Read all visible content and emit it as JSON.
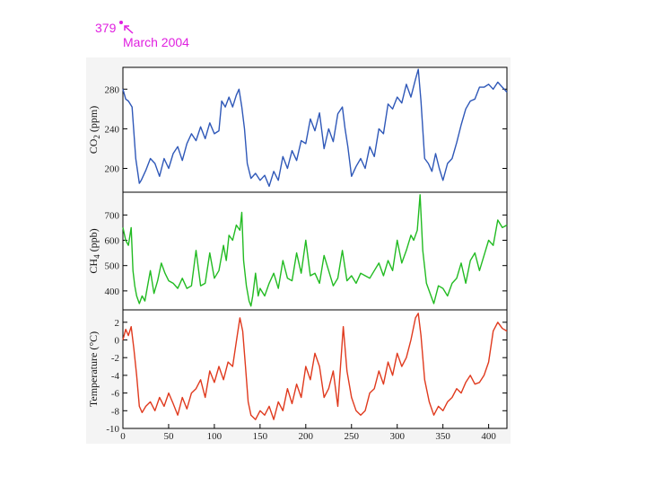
{
  "annotation": {
    "value": "379",
    "date": "March 2004",
    "color": "#e020e0"
  },
  "chart_data": [
    {
      "type": "line",
      "id": "co2",
      "ylabel": "CO2 (ppm)",
      "ylabel_main": "CO",
      "ylabel_sub": "2",
      "ylabel_rest": " (ppm)",
      "ylim": [
        176,
        302
      ],
      "yticks": [
        200,
        240,
        280
      ],
      "ytick_labels": [
        "200",
        "240",
        "280"
      ],
      "xlim": [
        0,
        420
      ],
      "color": "#2f58b8",
      "x": [
        0,
        3,
        6,
        10,
        14,
        18,
        20,
        25,
        30,
        35,
        40,
        45,
        50,
        55,
        60,
        65,
        70,
        75,
        80,
        85,
        90,
        95,
        100,
        105,
        108,
        112,
        116,
        120,
        124,
        127,
        130,
        133,
        136,
        140,
        145,
        150,
        155,
        160,
        165,
        170,
        175,
        180,
        185,
        190,
        195,
        200,
        205,
        210,
        215,
        220,
        225,
        230,
        235,
        240,
        243,
        246,
        250,
        255,
        260,
        265,
        270,
        275,
        280,
        285,
        290,
        295,
        300,
        305,
        310,
        315,
        320,
        323,
        326,
        330,
        334,
        338,
        342,
        346,
        350,
        355,
        360,
        365,
        370,
        375,
        380,
        385,
        390,
        395,
        400,
        405,
        410,
        415,
        420
      ],
      "values": [
        280,
        270,
        268,
        262,
        210,
        185,
        188,
        198,
        210,
        205,
        192,
        210,
        200,
        215,
        222,
        208,
        225,
        235,
        228,
        242,
        230,
        246,
        235,
        238,
        268,
        262,
        272,
        262,
        274,
        280,
        262,
        240,
        205,
        190,
        195,
        188,
        193,
        182,
        197,
        188,
        212,
        200,
        218,
        208,
        228,
        225,
        250,
        238,
        256,
        220,
        240,
        227,
        255,
        262,
        240,
        222,
        192,
        202,
        210,
        200,
        222,
        212,
        240,
        235,
        265,
        260,
        272,
        266,
        285,
        272,
        290,
        300,
        268,
        210,
        205,
        197,
        215,
        200,
        188,
        205,
        210,
        226,
        244,
        260,
        268,
        270,
        282,
        282,
        285,
        280,
        287,
        282,
        277
      ]
    },
    {
      "type": "line",
      "id": "ch4",
      "ylabel": "CH4 (ppb)",
      "ylabel_main": "CH",
      "ylabel_sub": "4",
      "ylabel_rest": " (ppb)",
      "ylim": [
        325,
        790
      ],
      "yticks": [
        400,
        500,
        600,
        700
      ],
      "ytick_labels": [
        "400",
        "500",
        "600",
        "700"
      ],
      "xlim": [
        0,
        420
      ],
      "color": "#22bb22",
      "x": [
        0,
        3,
        6,
        9,
        11,
        13,
        15,
        18,
        21,
        24,
        27,
        30,
        34,
        38,
        42,
        46,
        50,
        55,
        60,
        65,
        70,
        75,
        80,
        85,
        90,
        95,
        100,
        105,
        110,
        113,
        116,
        120,
        124,
        128,
        130,
        132,
        135,
        138,
        140,
        142,
        145,
        148,
        150,
        155,
        160,
        165,
        170,
        175,
        180,
        185,
        190,
        195,
        200,
        205,
        210,
        215,
        220,
        225,
        230,
        235,
        240,
        245,
        250,
        255,
        260,
        265,
        270,
        275,
        280,
        285,
        290,
        295,
        300,
        305,
        310,
        315,
        318,
        322,
        325,
        328,
        332,
        336,
        340,
        345,
        350,
        355,
        360,
        365,
        370,
        375,
        380,
        385,
        390,
        395,
        400,
        405,
        410,
        415,
        420
      ],
      "values": [
        650,
        600,
        580,
        650,
        480,
        420,
        380,
        350,
        380,
        360,
        420,
        480,
        390,
        440,
        510,
        470,
        440,
        430,
        410,
        450,
        410,
        420,
        560,
        420,
        430,
        550,
        450,
        480,
        580,
        520,
        620,
        600,
        660,
        640,
        710,
        520,
        420,
        360,
        340,
        380,
        470,
        380,
        410,
        380,
        430,
        470,
        410,
        520,
        450,
        440,
        550,
        470,
        600,
        460,
        470,
        430,
        540,
        480,
        420,
        450,
        560,
        440,
        460,
        430,
        470,
        460,
        450,
        480,
        510,
        460,
        520,
        480,
        600,
        510,
        560,
        620,
        600,
        640,
        780,
        560,
        430,
        390,
        350,
        420,
        410,
        380,
        430,
        450,
        510,
        430,
        520,
        550,
        480,
        540,
        600,
        580,
        680,
        650,
        660
      ]
    },
    {
      "type": "line",
      "id": "temperature",
      "ylabel": "Temperature (°C)",
      "ylim": [
        -10,
        3.4
      ],
      "yticks": [
        -10,
        -8,
        -6,
        -4,
        -2,
        0,
        2
      ],
      "ytick_labels": [
        "-10",
        "-8",
        "-6",
        "-4",
        "-2",
        "0",
        "2"
      ],
      "xlim": [
        0,
        420
      ],
      "xticks": [
        0,
        50,
        100,
        150,
        200,
        250,
        300,
        350,
        400
      ],
      "xtick_labels": [
        "0",
        "50",
        "100",
        "150",
        "200",
        "250",
        "300",
        "350",
        "400"
      ],
      "color": "#e03a1e",
      "x": [
        0,
        3,
        6,
        9,
        12,
        15,
        18,
        21,
        25,
        30,
        35,
        40,
        45,
        50,
        55,
        60,
        65,
        70,
        75,
        80,
        85,
        90,
        95,
        100,
        105,
        110,
        115,
        120,
        125,
        128,
        131,
        134,
        137,
        140,
        145,
        150,
        155,
        160,
        165,
        170,
        175,
        180,
        185,
        190,
        195,
        200,
        205,
        210,
        215,
        220,
        225,
        230,
        235,
        238,
        241,
        245,
        250,
        255,
        260,
        265,
        270,
        275,
        280,
        285,
        290,
        295,
        300,
        305,
        310,
        315,
        320,
        323,
        326,
        330,
        335,
        340,
        345,
        350,
        355,
        360,
        365,
        370,
        375,
        380,
        385,
        390,
        395,
        400,
        405,
        410,
        415,
        420
      ],
      "values": [
        0,
        1.2,
        0.5,
        1.5,
        -1,
        -4,
        -7.5,
        -8.2,
        -7.5,
        -7,
        -8,
        -6.5,
        -7.5,
        -6,
        -7.2,
        -8.5,
        -6.5,
        -7.8,
        -6,
        -5.5,
        -4.5,
        -6.5,
        -3.5,
        -4.8,
        -3,
        -4.5,
        -2.5,
        -3,
        0.5,
        2.5,
        1,
        -3,
        -7,
        -8.5,
        -9,
        -8,
        -8.5,
        -7.5,
        -9,
        -7,
        -8,
        -5.5,
        -7.2,
        -5,
        -6.5,
        -3,
        -4.5,
        -1.5,
        -3,
        -6.5,
        -5.5,
        -3.5,
        -7.5,
        -3,
        1.5,
        -3.5,
        -6.5,
        -8,
        -8.5,
        -8,
        -6,
        -5.5,
        -3.5,
        -5,
        -2.5,
        -4,
        -1.5,
        -3,
        -2,
        0,
        2.5,
        3,
        0.5,
        -4.5,
        -7,
        -8.5,
        -7.5,
        -8,
        -7,
        -6.5,
        -5.5,
        -6,
        -4.8,
        -4,
        -5,
        -4.8,
        -4,
        -2.5,
        1,
        2,
        1.3,
        1
      ]
    }
  ]
}
